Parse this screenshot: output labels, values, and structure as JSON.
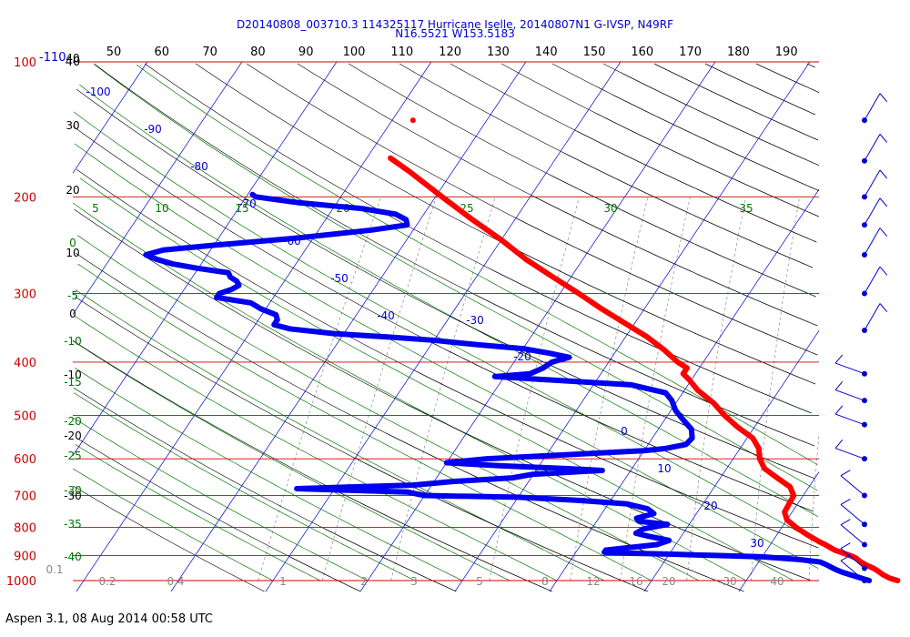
{
  "header": {
    "line1": "D20140808_003710.3 114325117 Hurricane Iselle, 20140807N1 G-IVSP, N49RF",
    "line2": "N16.5521 W153.5183"
  },
  "footer": "Aspen 3.1, 08 Aug 2014  00:58 UTC",
  "colors": {
    "isobar": "#cc0000",
    "isotherm": "#0000cc",
    "dry_adiabat": "#000000",
    "moist_adiabat": "#007700",
    "mixing_ratio": "#888888",
    "temperature": "#ff0000",
    "dewpoint": "#0000ee",
    "wind_barb": "#0000cc"
  },
  "chart_data": {
    "type": "skew-t log-p",
    "pressure_axis": {
      "labels": [
        "100",
        "200",
        "300",
        "400",
        "500",
        "600",
        "700",
        "800",
        "900",
        "1000"
      ],
      "extra_top_label": "-110"
    },
    "top_axis": {
      "labels": [
        "40",
        "50",
        "60",
        "70",
        "80",
        "90",
        "100",
        "110",
        "120",
        "130",
        "140",
        "150",
        "160",
        "170",
        "180",
        "190"
      ]
    },
    "isotherm_labels": [
      {
        "t": -100,
        "text": "-100"
      },
      {
        "t": -90,
        "text": "-90"
      },
      {
        "t": -80,
        "text": "-80"
      },
      {
        "t": -70,
        "text": "-70"
      },
      {
        "t": -60,
        "text": "-60"
      },
      {
        "t": -50,
        "text": "-50"
      },
      {
        "t": -40,
        "text": "-40"
      },
      {
        "t": -30,
        "text": "-30"
      },
      {
        "t": -20,
        "text": "-20"
      },
      {
        "t": 0,
        "text": "0"
      },
      {
        "t": 10,
        "text": "10"
      },
      {
        "t": 20,
        "text": "20"
      },
      {
        "t": 30,
        "text": "30"
      }
    ],
    "left_labels": [
      {
        "text": "40",
        "y": 68,
        "color": "black"
      },
      {
        "text": "30",
        "y": 142,
        "color": "black"
      },
      {
        "text": "20",
        "y": 213,
        "color": "black"
      },
      {
        "text": "10",
        "y": 282,
        "color": "black"
      },
      {
        "text": "0",
        "y": 349,
        "color": "black"
      },
      {
        "text": "-10",
        "y": 416,
        "color": "black"
      },
      {
        "text": "-20",
        "y": 483,
        "color": "black"
      },
      {
        "text": "-30",
        "y": 549,
        "color": "black"
      },
      {
        "text": "0",
        "y": 271,
        "color": "green"
      },
      {
        "text": "-5",
        "y": 329,
        "color": "green"
      },
      {
        "text": "-10",
        "y": 379,
        "color": "green"
      },
      {
        "text": "-15",
        "y": 424,
        "color": "green"
      },
      {
        "text": "-20",
        "y": 467,
        "color": "green"
      },
      {
        "text": "-25",
        "y": 505,
        "color": "green"
      },
      {
        "text": "-30",
        "y": 543,
        "color": "green"
      },
      {
        "text": "-35",
        "y": 580,
        "color": "green"
      },
      {
        "text": "-40",
        "y": 616,
        "color": "green"
      }
    ],
    "theta_e_labels": [
      "5",
      "10",
      "15",
      "20",
      "25",
      "30",
      "35"
    ],
    "mixing_ratio_labels": [
      "0.1",
      "0.2",
      "0.4",
      "1",
      "2",
      "3",
      "5",
      "8",
      "12",
      "16",
      "20",
      "30",
      "40"
    ],
    "temperature_profile": [
      [
        1000,
        26.0
      ],
      [
        990,
        25.0
      ],
      [
        975,
        24.0
      ],
      [
        960,
        23.2
      ],
      [
        950,
        22.6
      ],
      [
        940,
        21.8
      ],
      [
        925,
        20.8
      ],
      [
        910,
        20.0
      ],
      [
        900,
        19.2
      ],
      [
        880,
        17.2
      ],
      [
        860,
        15.8
      ],
      [
        850,
        15.0
      ],
      [
        825,
        13.2
      ],
      [
        800,
        11.5
      ],
      [
        775,
        10.0
      ],
      [
        750,
        9.2
      ],
      [
        700,
        9.0
      ],
      [
        675,
        8.0
      ],
      [
        650,
        6.0
      ],
      [
        625,
        4.0
      ],
      [
        600,
        2.8
      ],
      [
        575,
        2.0
      ],
      [
        550,
        0.6
      ],
      [
        525,
        -1.8
      ],
      [
        500,
        -4.0
      ],
      [
        475,
        -6.0
      ],
      [
        450,
        -8.6
      ],
      [
        430,
        -10.3
      ],
      [
        420,
        -11.3
      ],
      [
        410,
        -11.3
      ],
      [
        400,
        -12.7
      ],
      [
        380,
        -15.0
      ],
      [
        360,
        -17.7
      ],
      [
        340,
        -21.0
      ],
      [
        320,
        -24.5
      ],
      [
        300,
        -28.0
      ],
      [
        280,
        -31.9
      ],
      [
        260,
        -36.0
      ],
      [
        240,
        -39.9
      ],
      [
        220,
        -44.5
      ],
      [
        200,
        -49.3
      ],
      [
        180,
        -54.5
      ],
      [
        170,
        -57.5
      ]
    ],
    "temperature_top_point": [
      145,
      -57.8
    ],
    "dewpoint_profile": [
      [
        1000,
        23.0
      ],
      [
        995,
        22.5
      ],
      [
        985,
        21.5
      ],
      [
        975,
        20.5
      ],
      [
        965,
        19.5
      ],
      [
        955,
        18.7
      ],
      [
        945,
        18.0
      ],
      [
        935,
        17.3
      ],
      [
        925,
        16.5
      ],
      [
        915,
        14.0
      ],
      [
        905,
        10.0
      ],
      [
        900,
        5.0
      ],
      [
        895,
        0.0
      ],
      [
        892,
        -4.0
      ],
      [
        888,
        -7.0
      ],
      [
        880,
        -7.0
      ],
      [
        870,
        -4.5
      ],
      [
        860,
        -2.0
      ],
      [
        845,
        -1.0
      ],
      [
        830,
        -3.5
      ],
      [
        820,
        -5.0
      ],
      [
        805,
        -4.5
      ],
      [
        790,
        -2.3
      ],
      [
        780,
        -5.5
      ],
      [
        770,
        -6.0
      ],
      [
        755,
        -4.5
      ],
      [
        740,
        -5.5
      ],
      [
        725,
        -8.0
      ],
      [
        715,
        -13.0
      ],
      [
        705,
        -20.0
      ],
      [
        700,
        -30.0
      ],
      [
        690,
        -32.0
      ],
      [
        685,
        -38.0
      ],
      [
        680,
        -44.0
      ],
      [
        675,
        -38.0
      ],
      [
        670,
        -32.0
      ],
      [
        660,
        -28.0
      ],
      [
        650,
        -22.0
      ],
      [
        640,
        -20.0
      ],
      [
        630,
        -13.0
      ],
      [
        625,
        -17.0
      ],
      [
        618,
        -24.0
      ],
      [
        610,
        -30.0
      ],
      [
        600,
        -26.0
      ],
      [
        590,
        -18.0
      ],
      [
        580,
        -10.0
      ],
      [
        575,
        -8.0
      ],
      [
        565,
        -6.0
      ],
      [
        550,
        -5.8
      ],
      [
        530,
        -6.5
      ],
      [
        510,
        -8.0
      ],
      [
        490,
        -9.5
      ],
      [
        470,
        -10.6
      ],
      [
        455,
        -11.8
      ],
      [
        440,
        -16.0
      ],
      [
        430,
        -26.0
      ],
      [
        425,
        -31.0
      ],
      [
        420,
        -27.5
      ],
      [
        410,
        -26.5
      ],
      [
        400,
        -26.0
      ],
      [
        392,
        -24.5
      ],
      [
        385,
        -27.0
      ],
      [
        378,
        -30.0
      ],
      [
        372,
        -35.0
      ],
      [
        365,
        -40.0
      ],
      [
        360,
        -45.0
      ],
      [
        355,
        -51.0
      ],
      [
        348,
        -56.0
      ],
      [
        342,
        -58.0
      ],
      [
        335,
        -58.0
      ],
      [
        328,
        -58.5
      ],
      [
        320,
        -60.5
      ],
      [
        312,
        -62.0
      ],
      [
        305,
        -66.0
      ],
      [
        300,
        -66.0
      ],
      [
        295,
        -65.0
      ],
      [
        290,
        -64.5
      ],
      [
        285,
        -65.0
      ],
      [
        280,
        -66.0
      ],
      [
        275,
        -66.5
      ],
      [
        270,
        -70.0
      ],
      [
        265,
        -73.0
      ],
      [
        260,
        -75.0
      ],
      [
        255,
        -76.5
      ],
      [
        250,
        -75.0
      ],
      [
        245,
        -70.0
      ],
      [
        238,
        -62.0
      ],
      [
        230,
        -54.5
      ],
      [
        225,
        -51.0
      ],
      [
        220,
        -51.5
      ],
      [
        215,
        -53.0
      ],
      [
        210,
        -57.0
      ],
      [
        205,
        -64.0
      ],
      [
        200,
        -69.0
      ],
      [
        198,
        -69.5
      ]
    ],
    "wind_barbs": [
      {
        "p": 145,
        "label": ""
      },
      {
        "p": 172,
        "label": ""
      },
      {
        "p": 200,
        "label": ""
      },
      {
        "p": 225,
        "label": ""
      },
      {
        "p": 255,
        "label": ""
      },
      {
        "p": 300,
        "label": ""
      },
      {
        "p": 350,
        "label": ""
      },
      {
        "p": 420,
        "label": ""
      },
      {
        "p": 470,
        "label": ""
      },
      {
        "p": 520,
        "label": ""
      },
      {
        "p": 600,
        "label": ""
      },
      {
        "p": 700,
        "label": ""
      },
      {
        "p": 790,
        "label": ""
      },
      {
        "p": 860,
        "label": ""
      },
      {
        "p": 950,
        "label": ""
      },
      {
        "p": 1000,
        "label": ""
      }
    ]
  }
}
